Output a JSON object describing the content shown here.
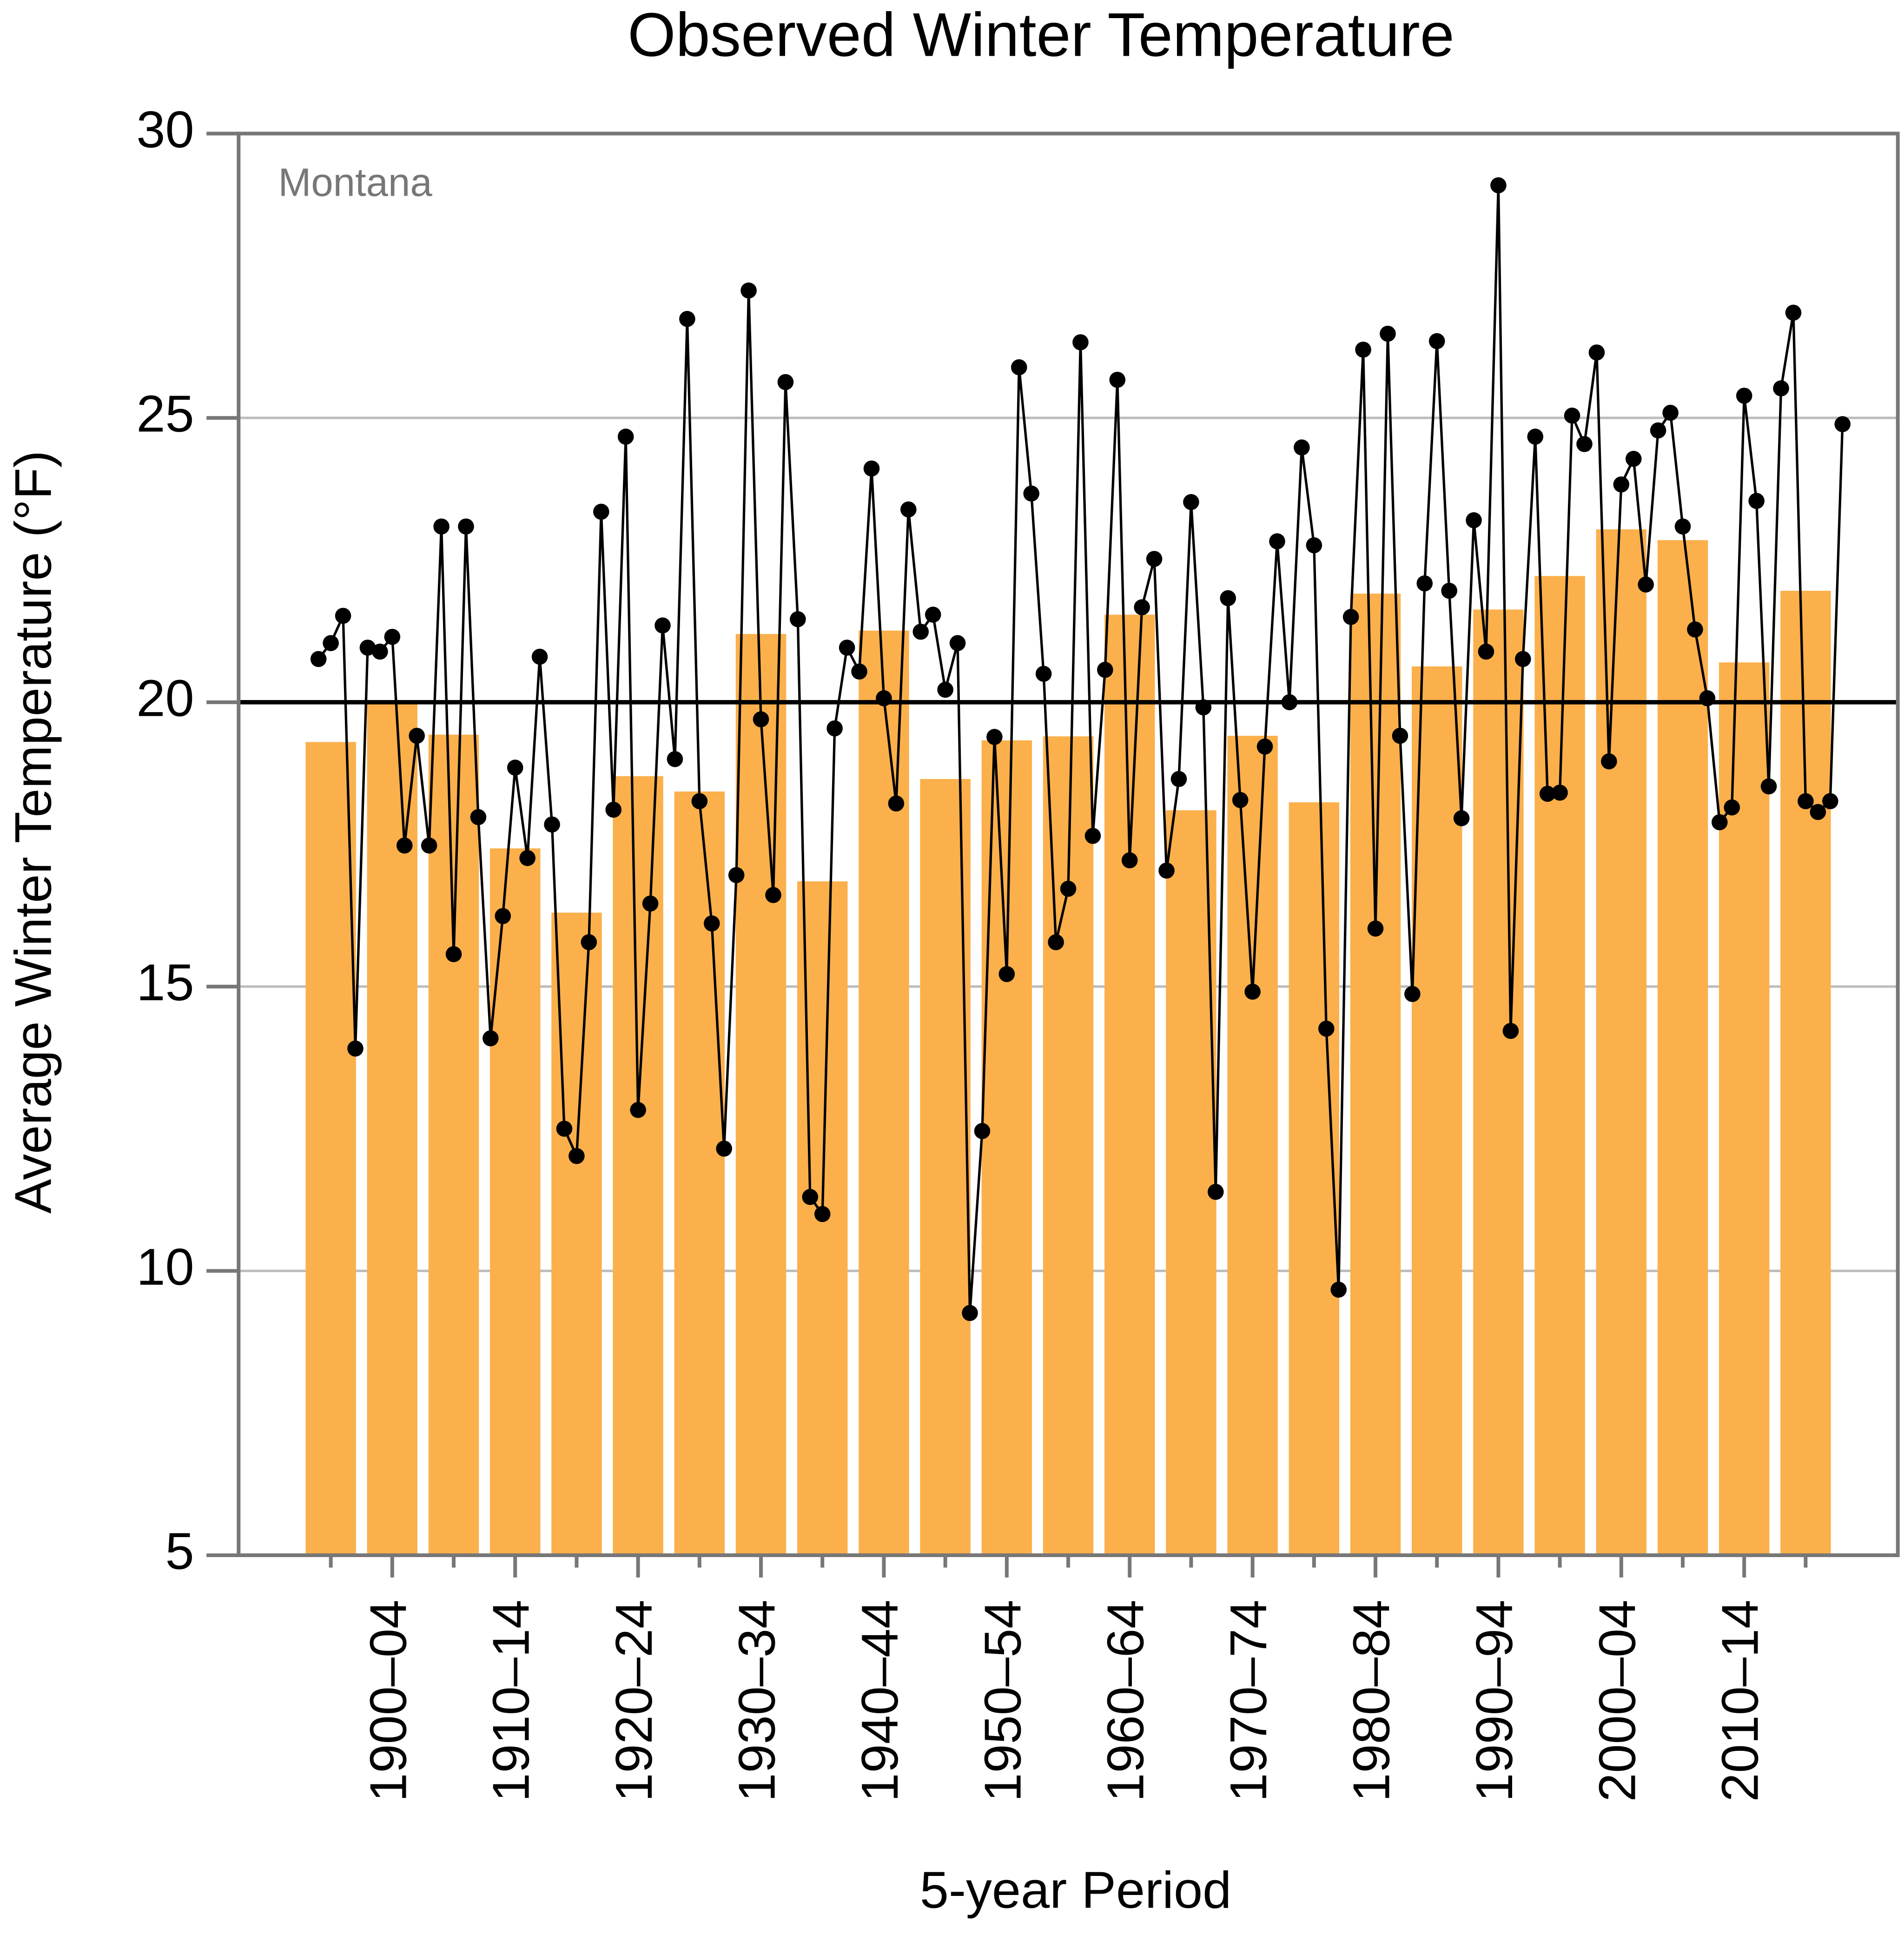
{
  "chart_data": {
    "type": "bar",
    "title": "Observed Winter Temperature",
    "xlabel": "5-year Period",
    "ylabel": "Average Winter Temperature (°F)",
    "annotation": "Montana",
    "categories": [
      null,
      "1900–04",
      null,
      "1910–14",
      null,
      "1920–24",
      null,
      "1930–34",
      null,
      "1940–44",
      null,
      "1950–54",
      null,
      "1960–64",
      null,
      "1970–74",
      null,
      "1980–84",
      null,
      "1990–94",
      null,
      "2000–04",
      null,
      "2010–14",
      null
    ],
    "values": [
      19.3,
      20.0,
      19.43,
      17.43,
      16.3,
      18.7,
      18.43,
      21.2,
      16.85,
      21.26,
      18.65,
      19.33,
      19.4,
      21.54,
      18.1,
      19.41,
      18.24,
      21.91,
      20.63,
      21.63,
      22.22,
      23.04,
      22.85,
      20.7,
      21.96
    ],
    "color": "#fbb04b",
    "line": {
      "type": "line",
      "color": "#000000",
      "x": [
        1896,
        1897,
        1898,
        1899,
        1900,
        1901,
        1902,
        1903,
        1904,
        1905,
        1906,
        1907,
        1908,
        1909,
        1910,
        1911,
        1912,
        1913,
        1914,
        1915,
        1916,
        1917,
        1918,
        1919,
        1920,
        1921,
        1922,
        1923,
        1924,
        1925,
        1926,
        1927,
        1928,
        1929,
        1930,
        1931,
        1932,
        1933,
        1934,
        1935,
        1936,
        1937,
        1938,
        1939,
        1940,
        1941,
        1942,
        1943,
        1944,
        1945,
        1946,
        1947,
        1948,
        1949,
        1950,
        1951,
        1952,
        1953,
        1954,
        1955,
        1956,
        1957,
        1958,
        1959,
        1960,
        1961,
        1962,
        1963,
        1964,
        1965,
        1966,
        1967,
        1968,
        1969,
        1970,
        1971,
        1972,
        1973,
        1974,
        1975,
        1976,
        1977,
        1978,
        1979,
        1980,
        1981,
        1982,
        1983,
        1984,
        1985,
        1986,
        1987,
        1988,
        1989,
        1990,
        1991,
        1992,
        1993,
        1994,
        1995,
        1996,
        1997,
        1998,
        1999,
        2000,
        2001,
        2002,
        2003,
        2004,
        2005,
        2006,
        2007,
        2008,
        2009,
        2010,
        2011,
        2012,
        2013,
        2014,
        2015,
        2016,
        2017,
        2018,
        2019,
        2020
      ],
      "values": [
        20.76,
        21.04,
        21.52,
        13.91,
        20.96,
        20.89,
        21.15,
        17.48,
        19.41,
        17.48,
        23.09,
        15.57,
        23.09,
        17.98,
        14.09,
        16.24,
        18.85,
        17.26,
        20.8,
        17.85,
        12.5,
        12.02,
        15.78,
        23.35,
        18.11,
        24.67,
        12.83,
        16.46,
        21.35,
        19.0,
        26.74,
        18.26,
        16.11,
        12.15,
        16.96,
        27.24,
        19.7,
        16.61,
        25.63,
        21.46,
        11.3,
        11.0,
        19.54,
        20.96,
        20.54,
        24.11,
        20.07,
        18.22,
        23.39,
        21.24,
        21.54,
        20.22,
        21.04,
        9.26,
        12.46,
        19.39,
        15.22,
        25.89,
        23.67,
        20.5,
        15.78,
        16.72,
        26.33,
        17.65,
        20.57,
        25.67,
        17.22,
        21.67,
        22.52,
        17.04,
        18.65,
        23.52,
        19.91,
        11.39,
        21.83,
        18.28,
        14.91,
        19.22,
        22.83,
        20.0,
        24.48,
        22.76,
        14.26,
        9.67,
        21.5,
        26.2,
        16.02,
        26.48,
        19.41,
        14.87,
        22.09,
        26.35,
        21.96,
        17.96,
        23.2,
        20.89,
        29.09,
        14.22,
        20.76,
        24.67,
        18.39,
        18.41,
        25.04,
        24.54,
        26.15,
        18.96,
        23.83,
        24.28,
        22.07,
        24.78,
        25.09,
        23.09,
        21.28,
        20.07,
        17.89,
        18.15,
        25.39,
        23.54,
        18.52,
        25.52,
        26.85,
        18.26,
        18.07,
        18.26,
        24.89
      ]
    },
    "xlim": [
      1889.5,
      2024.5
    ],
    "ylim": [
      5,
      30
    ],
    "yticks": [
      5,
      10,
      15,
      20,
      25,
      30
    ],
    "reference_line": 20,
    "grid": true
  }
}
